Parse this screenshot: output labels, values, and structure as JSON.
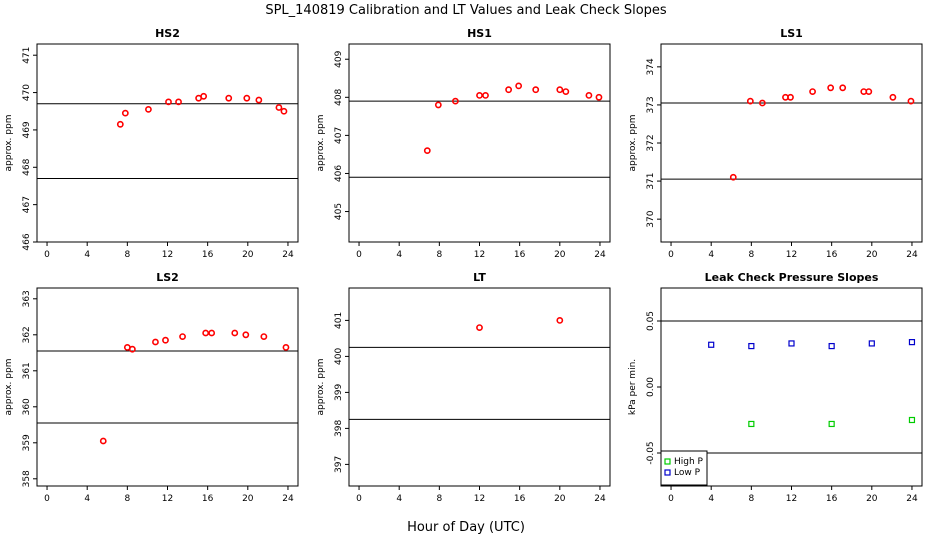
{
  "title": "SPL_140819  Calibration and LT Values and Leak Check Slopes",
  "xlabel": "Hour of Day (UTC)",
  "colors": {
    "calibration": "#ff0000",
    "high_p": "#00cc00",
    "low_p": "#0000cc",
    "lines": "#000000"
  },
  "chart_data": [
    {
      "type": "scatter",
      "title": "HS2",
      "ylabel": "approx. ppm",
      "xlim": [
        -1,
        25
      ],
      "ylim": [
        466,
        471.3
      ],
      "xticks": [
        0,
        4,
        8,
        12,
        16,
        20,
        24
      ],
      "yticks": [
        466,
        467,
        468,
        469,
        470,
        471
      ],
      "hlines": [
        469.7,
        467.7
      ],
      "series": [
        {
          "x": [
            7.3,
            7.8,
            10.1,
            12.1,
            13.1,
            15.1,
            15.6,
            18.1,
            19.9,
            21.1,
            23.1,
            23.6
          ],
          "y": [
            469.15,
            469.45,
            469.55,
            469.75,
            469.75,
            469.85,
            469.9,
            469.85,
            469.85,
            469.8,
            469.6,
            469.5
          ]
        }
      ]
    },
    {
      "type": "scatter",
      "title": "HS1",
      "ylabel": "approx. ppm",
      "xlim": [
        -1,
        25
      ],
      "ylim": [
        404.2,
        409.4
      ],
      "xticks": [
        0,
        4,
        8,
        12,
        16,
        20,
        24
      ],
      "yticks": [
        405,
        406,
        407,
        408,
        409
      ],
      "hlines": [
        407.9,
        405.9
      ],
      "series": [
        {
          "x": [
            6.8,
            7.9,
            9.6,
            12.0,
            12.6,
            14.9,
            15.9,
            17.6,
            20.0,
            20.6,
            22.9,
            23.9
          ],
          "y": [
            406.6,
            407.8,
            407.9,
            408.05,
            408.05,
            408.2,
            408.3,
            408.2,
            408.2,
            408.15,
            408.05,
            408.0
          ]
        }
      ]
    },
    {
      "type": "scatter",
      "title": "LS1",
      "ylabel": "approx. ppm",
      "xlim": [
        -1,
        25
      ],
      "ylim": [
        369.4,
        374.6
      ],
      "xticks": [
        0,
        4,
        8,
        12,
        16,
        20,
        24
      ],
      "yticks": [
        370,
        371,
        372,
        373,
        374
      ],
      "hlines": [
        373.05,
        371.05
      ],
      "series": [
        {
          "x": [
            6.2,
            7.9,
            9.1,
            11.4,
            11.9,
            14.1,
            15.9,
            17.1,
            19.2,
            19.7,
            22.1,
            23.9
          ],
          "y": [
            371.1,
            373.1,
            373.05,
            373.2,
            373.2,
            373.35,
            373.45,
            373.45,
            373.35,
            373.35,
            373.2,
            373.1
          ]
        }
      ]
    },
    {
      "type": "scatter",
      "title": "LS2",
      "ylabel": "approx. ppm",
      "xlim": [
        -1,
        25
      ],
      "ylim": [
        357.8,
        363.3
      ],
      "xticks": [
        0,
        4,
        8,
        12,
        16,
        20,
        24
      ],
      "yticks": [
        358,
        359,
        360,
        361,
        362,
        363
      ],
      "hlines": [
        361.55,
        359.55
      ],
      "series": [
        {
          "x": [
            5.6,
            8.0,
            8.5,
            10.8,
            11.8,
            13.5,
            15.8,
            16.4,
            18.7,
            19.8,
            21.6,
            23.8
          ],
          "y": [
            359.05,
            361.65,
            361.6,
            361.8,
            361.85,
            361.95,
            362.05,
            362.05,
            362.05,
            362.0,
            361.95,
            361.65
          ]
        }
      ]
    },
    {
      "type": "scatter",
      "title": "LT",
      "ylabel": "approx. ppm",
      "xlim": [
        -1,
        25
      ],
      "ylim": [
        396.4,
        401.9
      ],
      "xticks": [
        0,
        4,
        8,
        12,
        16,
        20,
        24
      ],
      "yticks": [
        397,
        398,
        399,
        400,
        401
      ],
      "hlines": [
        400.25,
        398.25
      ],
      "series": [
        {
          "x": [
            12.0,
            20.0
          ],
          "y": [
            400.8,
            401.0
          ]
        }
      ]
    },
    {
      "type": "scatter",
      "title": "Leak Check Pressure Slopes",
      "ylabel": "kPa per min.",
      "xlim": [
        -1,
        25
      ],
      "ylim": [
        -0.075,
        0.075
      ],
      "xticks": [
        0,
        4,
        8,
        12,
        16,
        20,
        24
      ],
      "yticks": [
        -0.05,
        0.0,
        0.05
      ],
      "ytick_labels": [
        "-0.05",
        "0.00",
        "0.05"
      ],
      "hlines": [
        0.05,
        -0.05
      ],
      "legend_position": "bottom-left",
      "series": [
        {
          "name": "High P",
          "x": [
            8,
            16,
            24
          ],
          "y": [
            -0.028,
            -0.028,
            -0.025
          ]
        },
        {
          "name": "Low P",
          "x": [
            4,
            8,
            12,
            16,
            20,
            24
          ],
          "y": [
            0.032,
            0.031,
            0.033,
            0.031,
            0.033,
            0.034
          ]
        }
      ]
    }
  ]
}
